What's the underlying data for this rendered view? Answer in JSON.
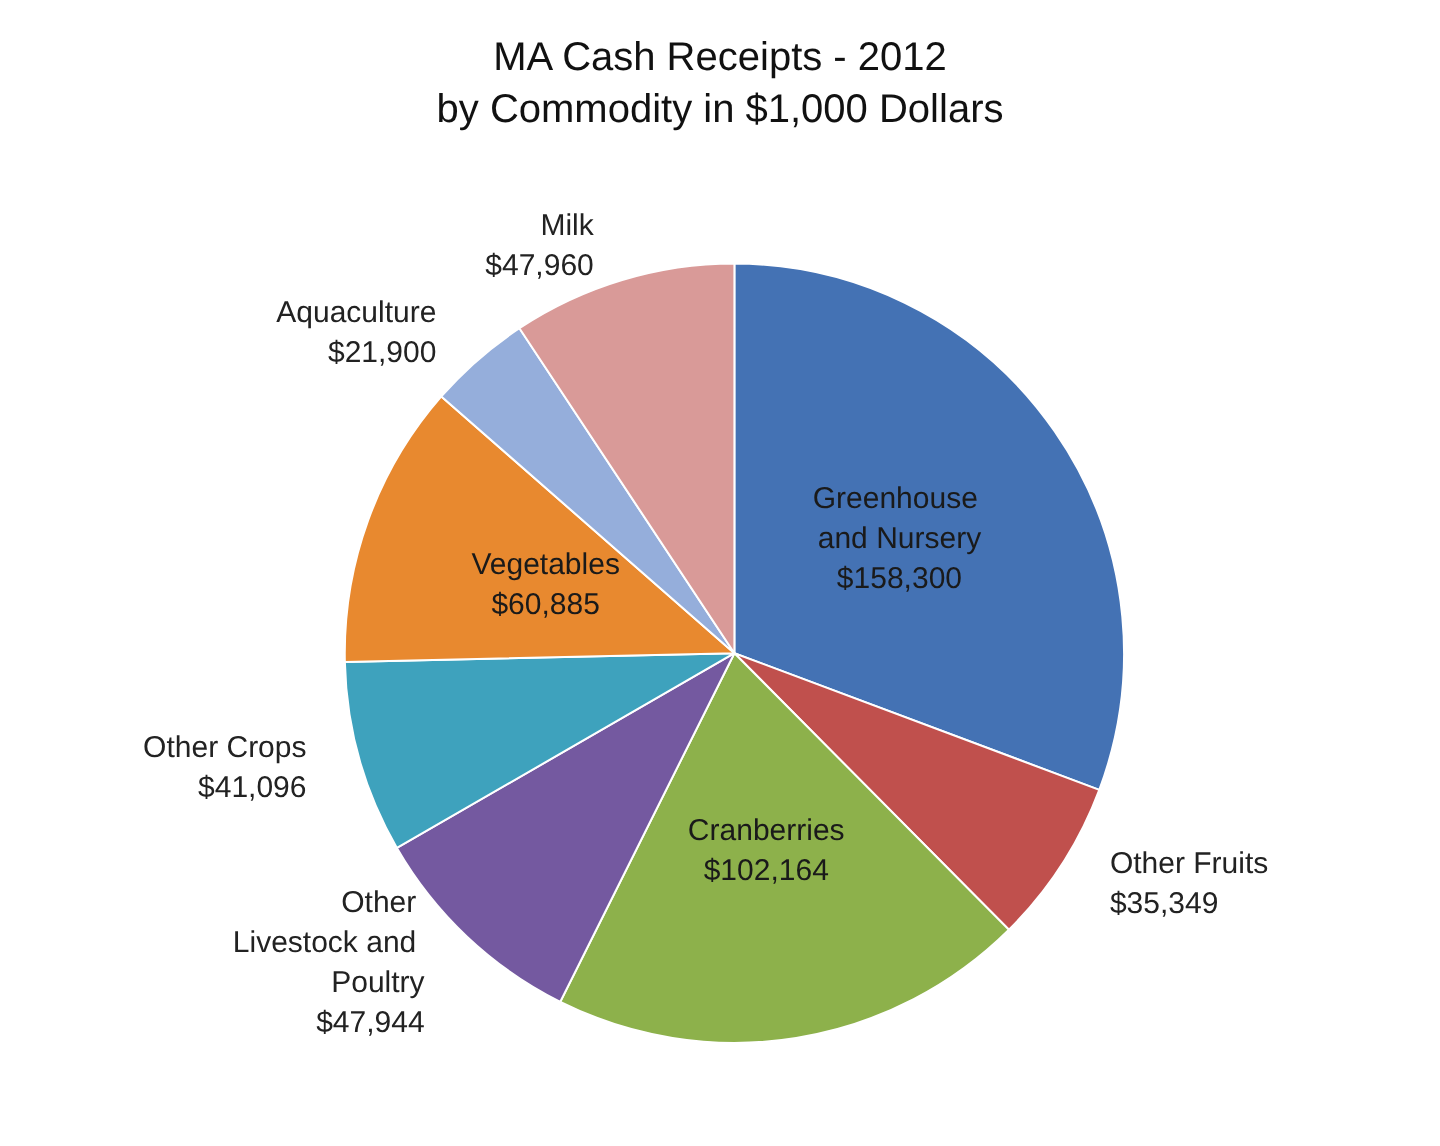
{
  "chart_data": {
    "type": "pie",
    "title": "MA Cash Receipts - 2012",
    "subtitle": "by Commodity in $1,000 Dollars",
    "categories": [
      "Greenhouse and Nursery",
      "Other Fruits",
      "Cranberries",
      "Other Livestock and Poultry",
      "Other Crops",
      "Vegetables",
      "Aquaculture",
      "Milk"
    ],
    "values": [
      158300,
      35349,
      102164,
      47944,
      41096,
      60885,
      21900,
      47960
    ],
    "value_labels": [
      "$158,300",
      "$35,349",
      "$102,164",
      "$47,944",
      "$41,096",
      "$60,885",
      "$21,900",
      "$47,960"
    ],
    "colors": [
      "#4472b4",
      "#c0504d",
      "#8db14b",
      "#7459a0",
      "#3ea2bd",
      "#e8892f",
      "#95aedb",
      "#d99a98"
    ],
    "legend": false
  }
}
